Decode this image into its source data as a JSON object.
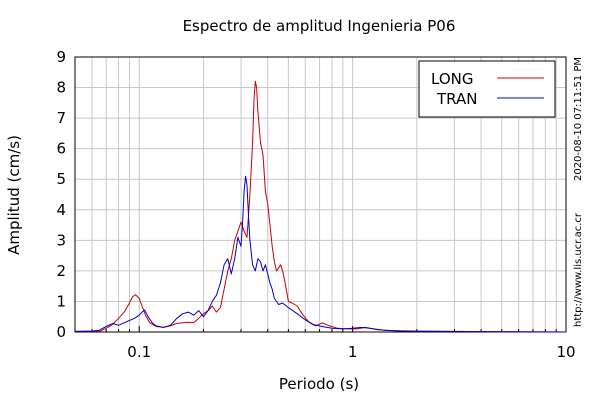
{
  "chart_data": {
    "type": "line",
    "title": "Espectro de amplitud Ingenieria P06",
    "xlabel": "Periodo (s)",
    "ylabel": "Amplitud (cm/s)",
    "x_scale": "log",
    "xlim": [
      0.05,
      10
    ],
    "ylim": [
      0,
      9
    ],
    "x_tick_labels": [
      {
        "value": 0.1,
        "label": "0.1"
      },
      {
        "value": 1,
        "label": "1"
      },
      {
        "value": 10,
        "label": "10"
      }
    ],
    "y_ticks": [
      0,
      1,
      2,
      3,
      4,
      5,
      6,
      7,
      8,
      9
    ],
    "grid": true,
    "legend_position": "top-right",
    "series": [
      {
        "name": "LONG",
        "color": "#cc0000",
        "points": [
          [
            0.05,
            0.02
          ],
          [
            0.06,
            0.03
          ],
          [
            0.065,
            0.02
          ],
          [
            0.07,
            0.12
          ],
          [
            0.075,
            0.25
          ],
          [
            0.08,
            0.45
          ],
          [
            0.085,
            0.65
          ],
          [
            0.09,
            0.95
          ],
          [
            0.093,
            1.15
          ],
          [
            0.096,
            1.22
          ],
          [
            0.1,
            1.1
          ],
          [
            0.103,
            0.85
          ],
          [
            0.107,
            0.55
          ],
          [
            0.112,
            0.3
          ],
          [
            0.12,
            0.18
          ],
          [
            0.13,
            0.15
          ],
          [
            0.14,
            0.2
          ],
          [
            0.15,
            0.28
          ],
          [
            0.16,
            0.3
          ],
          [
            0.17,
            0.32
          ],
          [
            0.18,
            0.3
          ],
          [
            0.19,
            0.45
          ],
          [
            0.2,
            0.6
          ],
          [
            0.21,
            0.7
          ],
          [
            0.22,
            0.85
          ],
          [
            0.23,
            0.65
          ],
          [
            0.24,
            0.8
          ],
          [
            0.25,
            1.4
          ],
          [
            0.26,
            2.0
          ],
          [
            0.27,
            2.4
          ],
          [
            0.28,
            3.0
          ],
          [
            0.29,
            3.3
          ],
          [
            0.3,
            3.6
          ],
          [
            0.31,
            3.3
          ],
          [
            0.32,
            3.1
          ],
          [
            0.33,
            4.5
          ],
          [
            0.34,
            6.2
          ],
          [
            0.345,
            7.6
          ],
          [
            0.35,
            8.2
          ],
          [
            0.355,
            8.0
          ],
          [
            0.36,
            7.2
          ],
          [
            0.37,
            6.2
          ],
          [
            0.38,
            5.8
          ],
          [
            0.39,
            4.6
          ],
          [
            0.4,
            4.2
          ],
          [
            0.41,
            3.5
          ],
          [
            0.42,
            2.8
          ],
          [
            0.43,
            2.3
          ],
          [
            0.44,
            2.0
          ],
          [
            0.45,
            2.1
          ],
          [
            0.46,
            2.2
          ],
          [
            0.47,
            2.0
          ],
          [
            0.48,
            1.7
          ],
          [
            0.5,
            1.0
          ],
          [
            0.52,
            0.95
          ],
          [
            0.55,
            0.85
          ],
          [
            0.58,
            0.6
          ],
          [
            0.62,
            0.35
          ],
          [
            0.67,
            0.2
          ],
          [
            0.72,
            0.3
          ],
          [
            0.78,
            0.2
          ],
          [
            0.85,
            0.12
          ],
          [
            0.95,
            0.1
          ],
          [
            1.05,
            0.1
          ],
          [
            1.15,
            0.15
          ],
          [
            1.3,
            0.08
          ],
          [
            1.5,
            0.05
          ],
          [
            2.0,
            0.03
          ],
          [
            3.0,
            0.02
          ],
          [
            5.0,
            0.01
          ],
          [
            10,
            0.0
          ]
        ]
      },
      {
        "name": "TRAN",
        "color": "#0000cc",
        "points": [
          [
            0.05,
            0.02
          ],
          [
            0.06,
            0.03
          ],
          [
            0.065,
            0.06
          ],
          [
            0.07,
            0.18
          ],
          [
            0.075,
            0.28
          ],
          [
            0.08,
            0.22
          ],
          [
            0.085,
            0.3
          ],
          [
            0.09,
            0.38
          ],
          [
            0.095,
            0.45
          ],
          [
            0.1,
            0.55
          ],
          [
            0.103,
            0.65
          ],
          [
            0.106,
            0.72
          ],
          [
            0.11,
            0.5
          ],
          [
            0.115,
            0.3
          ],
          [
            0.12,
            0.2
          ],
          [
            0.13,
            0.15
          ],
          [
            0.14,
            0.22
          ],
          [
            0.15,
            0.45
          ],
          [
            0.16,
            0.6
          ],
          [
            0.17,
            0.65
          ],
          [
            0.18,
            0.55
          ],
          [
            0.19,
            0.7
          ],
          [
            0.2,
            0.5
          ],
          [
            0.21,
            0.7
          ],
          [
            0.22,
            1.0
          ],
          [
            0.23,
            1.2
          ],
          [
            0.24,
            1.6
          ],
          [
            0.25,
            2.2
          ],
          [
            0.26,
            2.4
          ],
          [
            0.27,
            1.9
          ],
          [
            0.28,
            2.4
          ],
          [
            0.29,
            3.1
          ],
          [
            0.3,
            2.8
          ],
          [
            0.305,
            3.6
          ],
          [
            0.31,
            4.6
          ],
          [
            0.315,
            5.1
          ],
          [
            0.32,
            4.8
          ],
          [
            0.325,
            3.8
          ],
          [
            0.33,
            3.0
          ],
          [
            0.34,
            2.2
          ],
          [
            0.35,
            2.0
          ],
          [
            0.36,
            2.4
          ],
          [
            0.37,
            2.3
          ],
          [
            0.38,
            2.0
          ],
          [
            0.39,
            2.2
          ],
          [
            0.4,
            1.9
          ],
          [
            0.41,
            1.6
          ],
          [
            0.42,
            1.4
          ],
          [
            0.43,
            1.1
          ],
          [
            0.45,
            0.9
          ],
          [
            0.47,
            0.95
          ],
          [
            0.5,
            0.8
          ],
          [
            0.55,
            0.6
          ],
          [
            0.6,
            0.4
          ],
          [
            0.65,
            0.25
          ],
          [
            0.72,
            0.18
          ],
          [
            0.8,
            0.12
          ],
          [
            0.9,
            0.1
          ],
          [
            1.0,
            0.12
          ],
          [
            1.1,
            0.15
          ],
          [
            1.2,
            0.12
          ],
          [
            1.4,
            0.06
          ],
          [
            1.7,
            0.03
          ],
          [
            2.5,
            0.02
          ],
          [
            5.0,
            0.01
          ],
          [
            10,
            0.0
          ]
        ]
      }
    ],
    "side_texts": [
      "2020-08-10 07:11:51 PM",
      "http://www.lis.ucr.ac.cr"
    ]
  }
}
